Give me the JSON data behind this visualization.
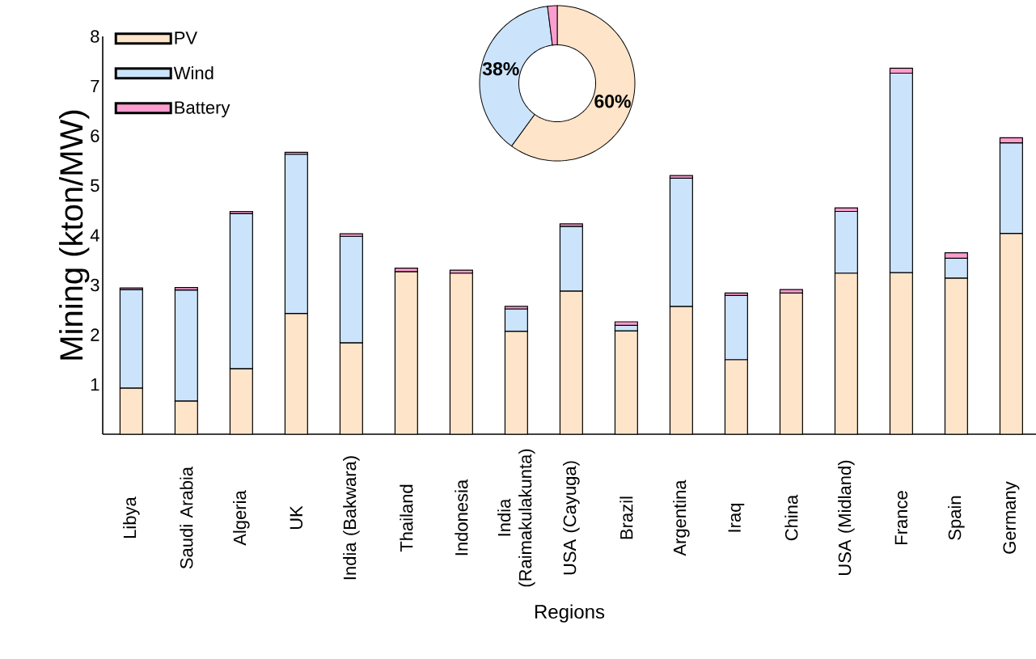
{
  "chart_data": [
    {
      "type": "bar",
      "stacked": true,
      "xlabel": "Regions",
      "ylabel": "Mining (kton/MW)",
      "categories": [
        "Libya",
        "Saudi Arabia",
        "Algeria",
        "UK",
        "India (Bakwara)",
        "Thailand",
        "Indonesia",
        "India (Raimakulakunta)",
        "USA (Cayuga)",
        "Brazil",
        "Argentina",
        "Iraq",
        "China",
        "USA (Midland)",
        "France",
        "Spain",
        "Germany"
      ],
      "series": [
        {
          "name": "PV",
          "color": "#fee4c9",
          "values": [
            0.93,
            0.67,
            1.32,
            2.43,
            1.84,
            3.27,
            3.24,
            2.07,
            2.88,
            2.08,
            2.57,
            1.5,
            2.84,
            3.24,
            3.25,
            3.14,
            4.04
          ]
        },
        {
          "name": "Wind",
          "color": "#cbe4fb",
          "values": [
            1.98,
            2.23,
            3.12,
            3.2,
            2.14,
            null,
            null,
            0.45,
            1.3,
            0.11,
            2.58,
            1.29,
            null,
            1.24,
            4.01,
            0.4,
            1.82
          ]
        },
        {
          "name": "Battery",
          "color": "#fb9dcf",
          "values": [
            0.03,
            0.05,
            0.04,
            0.04,
            0.05,
            0.07,
            0.06,
            0.05,
            0.05,
            0.07,
            0.05,
            0.05,
            0.07,
            0.07,
            0.1,
            0.11,
            0.1
          ]
        }
      ],
      "ylim": [
        0,
        8
      ],
      "yticks": [
        1,
        2,
        3,
        4,
        5,
        6,
        7,
        8
      ],
      "legend": "top left"
    },
    {
      "type": "donut",
      "categories": [
        null,
        null,
        null
      ],
      "values": [
        60,
        38,
        2
      ],
      "colors": [
        "#fee4c9",
        "#cbe4fb",
        "#fb9dcf"
      ],
      "value_labels": [
        "60%",
        "38%",
        null
      ]
    }
  ]
}
